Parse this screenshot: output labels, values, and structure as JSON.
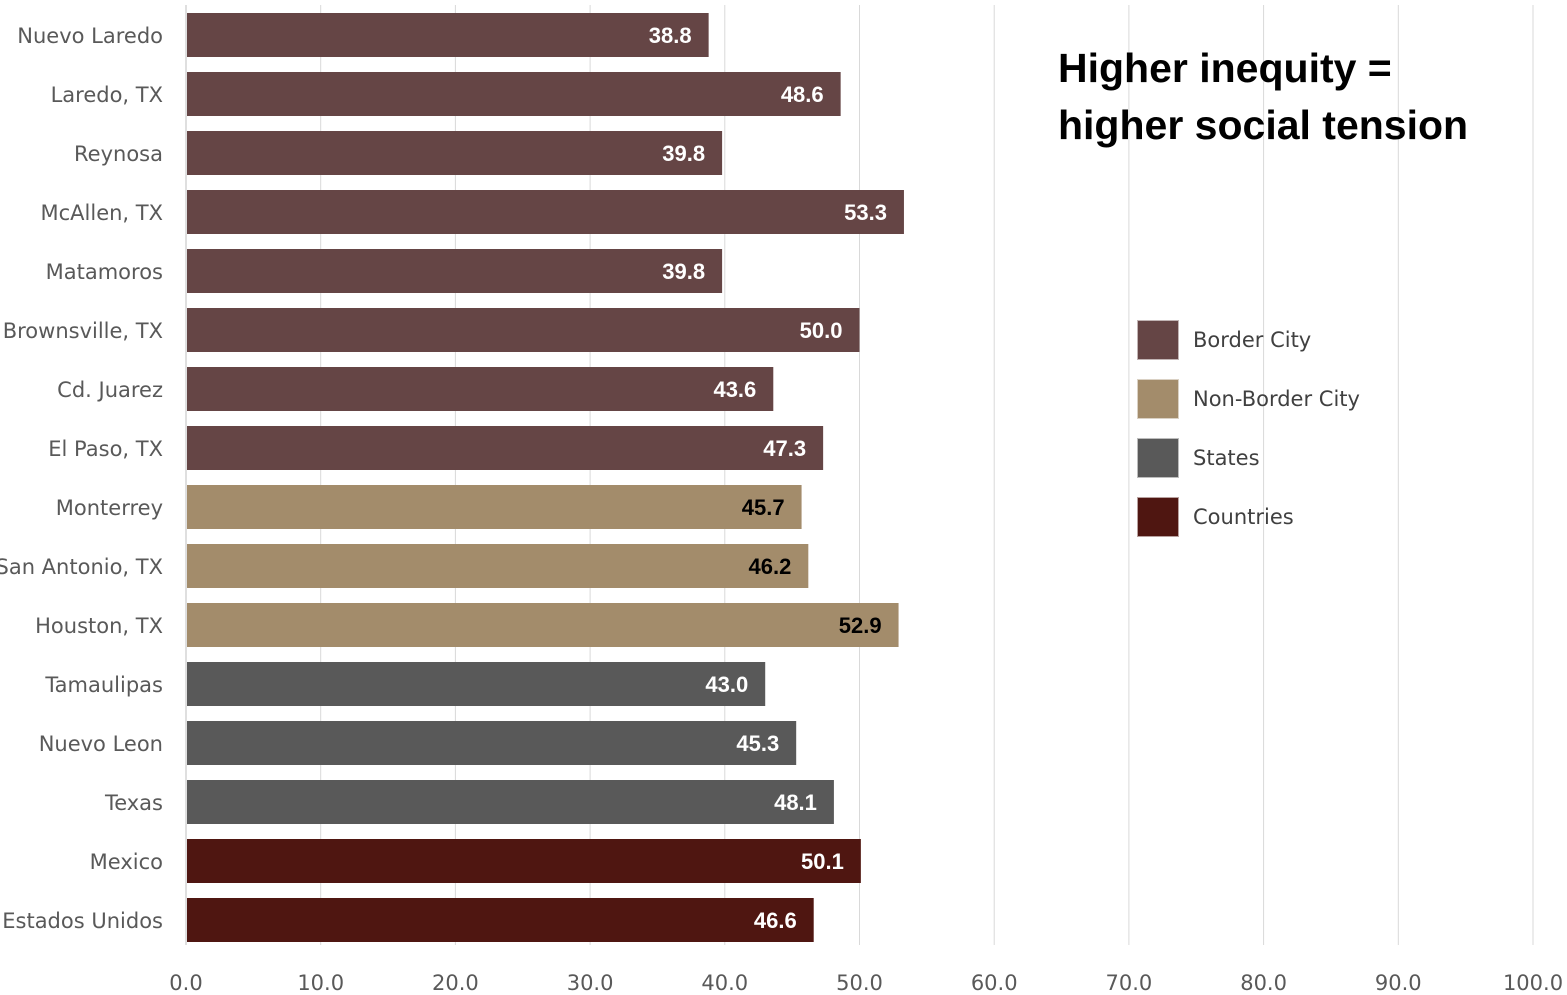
{
  "chart_data": {
    "type": "bar",
    "orientation": "horizontal",
    "categories": [
      "Nuevo Laredo",
      "Laredo, TX",
      "Reynosa",
      "McAllen, TX",
      "Matamoros",
      "Brownsville, TX",
      "Cd. Juarez",
      "El Paso, TX",
      "Monterrey",
      "San Antonio, TX",
      "Houston, TX",
      "Tamaulipas",
      "Nuevo Leon",
      "Texas",
      "Mexico",
      "Estados Unidos"
    ],
    "values": [
      38.8,
      48.6,
      39.8,
      53.3,
      39.8,
      50.0,
      43.6,
      47.3,
      45.7,
      46.2,
      52.9,
      43.0,
      45.3,
      48.1,
      50.1,
      46.6
    ],
    "value_labels": [
      "38.8",
      "48.6",
      "39.8",
      "53.3",
      "39.8",
      "50.0",
      "43.6",
      "47.3",
      "45.7",
      "46.2",
      "52.9",
      "43.0",
      "45.3",
      "48.1",
      "50.1",
      "46.6"
    ],
    "groups": [
      "Border City",
      "Border City",
      "Border City",
      "Border City",
      "Border City",
      "Border City",
      "Border City",
      "Border City",
      "Non-Border City",
      "Non-Border City",
      "Non-Border City",
      "States",
      "States",
      "States",
      "Countries",
      "Countries"
    ],
    "legend": [
      {
        "name": "Border City",
        "color": "#654545"
      },
      {
        "name": "Non-Border City",
        "color": "#a38c6b"
      },
      {
        "name": "States",
        "color": "#595959"
      },
      {
        "name": "Countries",
        "color": "#4f1611"
      }
    ],
    "label_colors": {
      "Border City": "#ffffff",
      "Non-Border City": "#000000",
      "States": "#ffffff",
      "Countries": "#ffffff"
    },
    "xlim": [
      0,
      100
    ],
    "xticks": [
      "0.0",
      "10.0",
      "20.0",
      "30.0",
      "40.0",
      "50.0",
      "60.0",
      "70.0",
      "80.0",
      "90.0",
      "100.0"
    ],
    "grid": "vertical",
    "legend_position": "right",
    "title": "",
    "xlabel": "",
    "ylabel": ""
  },
  "annotation": {
    "line1": "Higher inequity =",
    "line2": "higher social tension"
  }
}
